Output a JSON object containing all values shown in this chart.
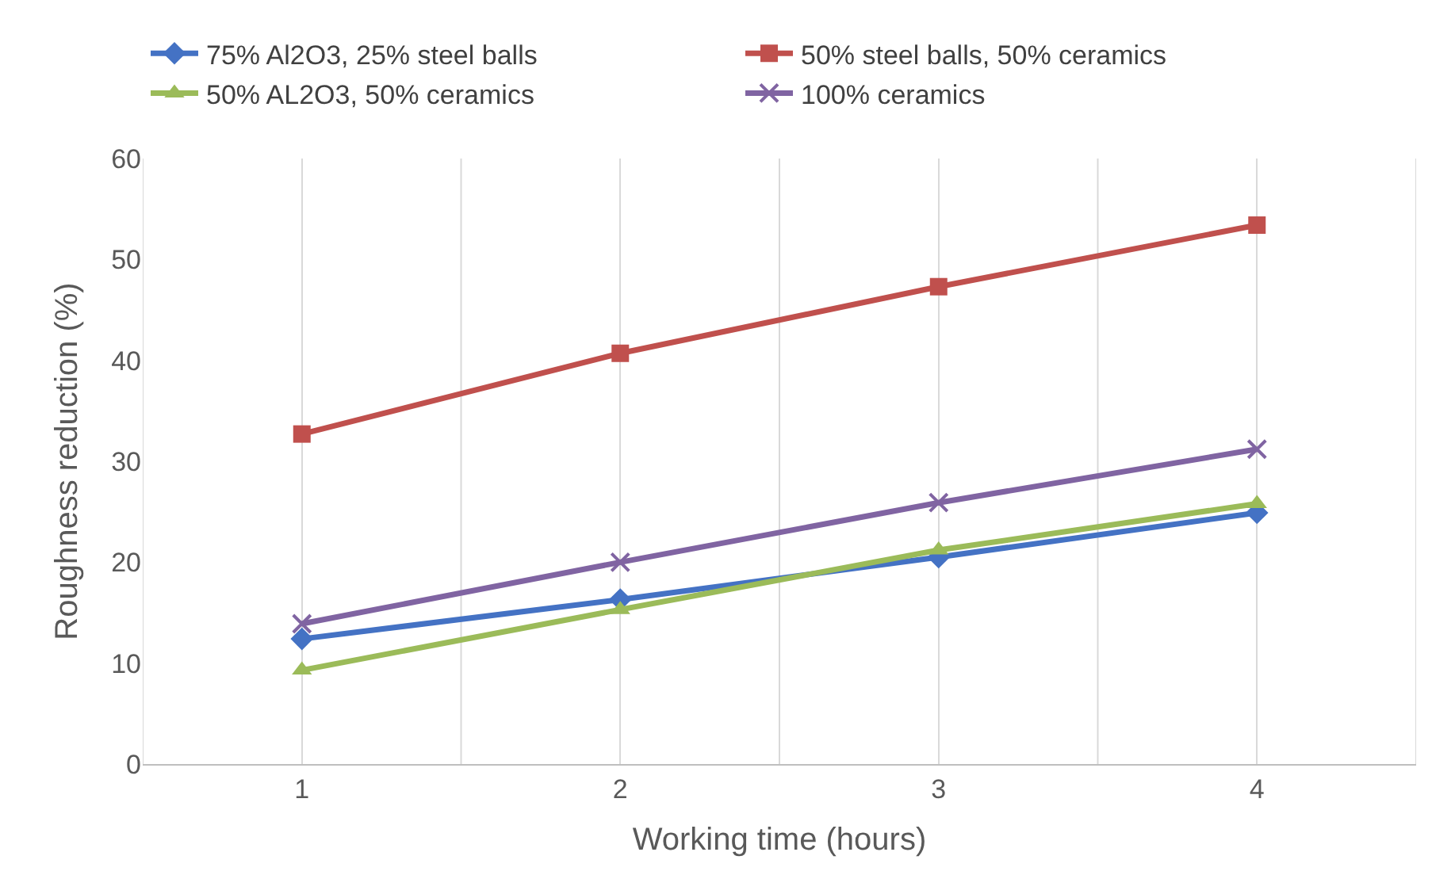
{
  "chart_data": {
    "type": "line",
    "xlabel": "Working time (hours)",
    "ylabel": "Roughness reduction (%)",
    "categories": [
      "1",
      "2",
      "3",
      "4"
    ],
    "series": [
      {
        "name": "75% Al2O3, 25% steel balls",
        "color": "#4472c4",
        "marker": "diamond",
        "values": [
          12.4,
          16.3,
          20.5,
          24.9
        ]
      },
      {
        "name": "50% steel balls, 50% ceramics",
        "color": "#c0504d",
        "marker": "square",
        "values": [
          32.7,
          40.7,
          47.3,
          53.4
        ]
      },
      {
        "name": "50% AL2O3, 50% ceramics",
        "color": "#9bbb59",
        "marker": "triangle",
        "values": [
          9.3,
          15.3,
          21.2,
          25.8
        ]
      },
      {
        "name": "100% ceramics",
        "color": "#8064a2",
        "marker": "cross",
        "values": [
          13.9,
          20.0,
          25.9,
          31.2
        ]
      }
    ],
    "ylim": [
      0,
      60
    ],
    "yticks": [
      0,
      10,
      20,
      30,
      40,
      50,
      60
    ],
    "grid": "x",
    "legend": "top",
    "line_style": "solid"
  }
}
